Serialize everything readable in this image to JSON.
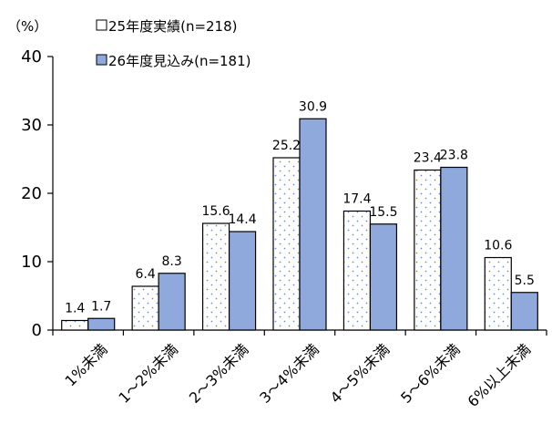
{
  "chart_data": {
    "type": "bar",
    "unit_label": "（%）",
    "categories": [
      "1%未満",
      "1～2%未満",
      "2～3%未満",
      "3～4%未満",
      "4～5%未満",
      "5～6%未満",
      "6%以上未満"
    ],
    "series": [
      {
        "name": "25年度実績(n=218)",
        "values": [
          1.4,
          6.4,
          15.6,
          25.2,
          17.4,
          23.4,
          10.6
        ],
        "style": "dotted-white",
        "color": "#ffffff"
      },
      {
        "name": "26年度見込み(n=181)",
        "values": [
          1.7,
          8.3,
          14.4,
          30.9,
          15.5,
          23.8,
          5.5
        ],
        "style": "solid",
        "color": "#8fa9dc"
      }
    ],
    "ylim": [
      0,
      40
    ],
    "yticks": [
      0,
      10,
      20,
      30,
      40
    ],
    "legend_position": "top-left",
    "grid": false
  }
}
